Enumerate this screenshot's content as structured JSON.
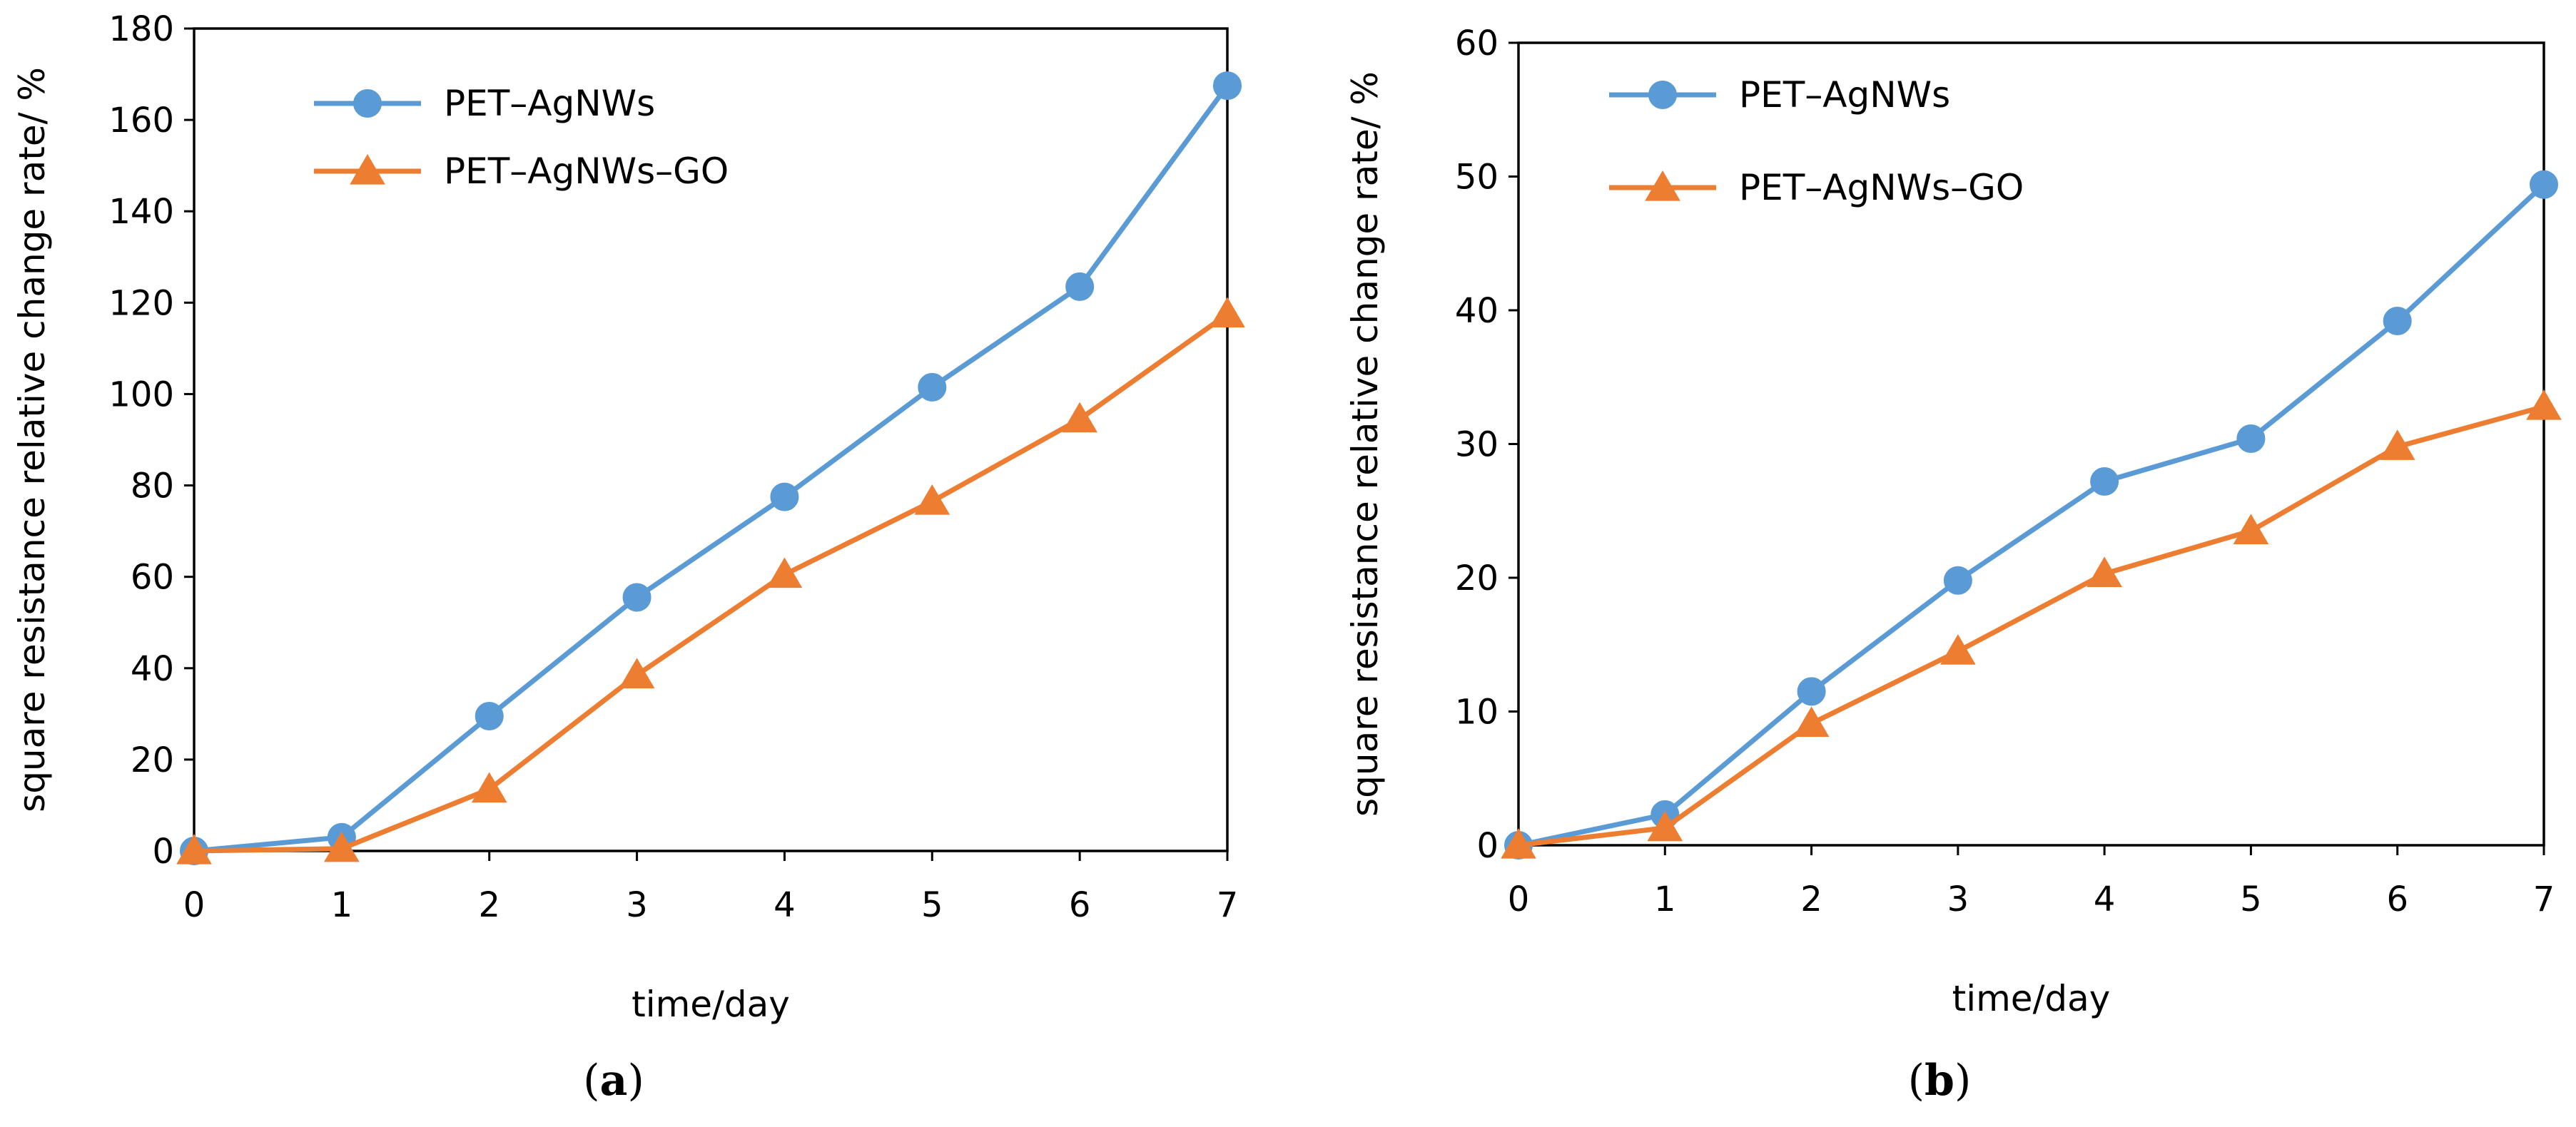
{
  "chart_data": [
    {
      "id": "a",
      "type": "line",
      "panel_label": "a",
      "xlabel": "time/day",
      "ylabel": "square resistance relative change rate/ %",
      "x": [
        0,
        1,
        2,
        3,
        4,
        5,
        6,
        7
      ],
      "xlim": [
        0,
        7
      ],
      "ylim": [
        0,
        180
      ],
      "yticks": [
        0,
        20,
        40,
        60,
        80,
        100,
        120,
        140,
        160,
        180
      ],
      "xticks": [
        0,
        1,
        2,
        3,
        4,
        5,
        6,
        7
      ],
      "legend_position": "top-left",
      "series": [
        {
          "name": "PET–AgNWs",
          "color": "#5b9bd5",
          "marker": "circle",
          "values": [
            0,
            3,
            29.5,
            55.5,
            77.5,
            101.5,
            123.5,
            167.5
          ]
        },
        {
          "name": "PET–AgNWs–GO",
          "color": "#ed7d31",
          "marker": "triangle",
          "values": [
            0,
            0.5,
            13.5,
            38.5,
            60.5,
            76.5,
            94.5,
            117.5
          ]
        }
      ]
    },
    {
      "id": "b",
      "type": "line",
      "panel_label": "b",
      "xlabel": "time/day",
      "ylabel": "square resistance relative change rate/ %",
      "x": [
        0,
        1,
        2,
        3,
        4,
        5,
        6,
        7
      ],
      "xlim": [
        0,
        7
      ],
      "ylim": [
        0,
        60
      ],
      "yticks": [
        0,
        10,
        20,
        30,
        40,
        50,
        60
      ],
      "xticks": [
        0,
        1,
        2,
        3,
        4,
        5,
        6,
        7
      ],
      "legend_position": "top-left",
      "series": [
        {
          "name": "PET–AgNWs",
          "color": "#5b9bd5",
          "marker": "circle",
          "values": [
            0,
            2.3,
            11.5,
            19.8,
            27.2,
            30.4,
            39.2,
            49.4
          ]
        },
        {
          "name": "PET–AgNWs–GO",
          "color": "#ed7d31",
          "marker": "triangle",
          "values": [
            0,
            1.3,
            9.1,
            14.5,
            20.3,
            23.5,
            29.8,
            32.8
          ]
        }
      ]
    }
  ]
}
